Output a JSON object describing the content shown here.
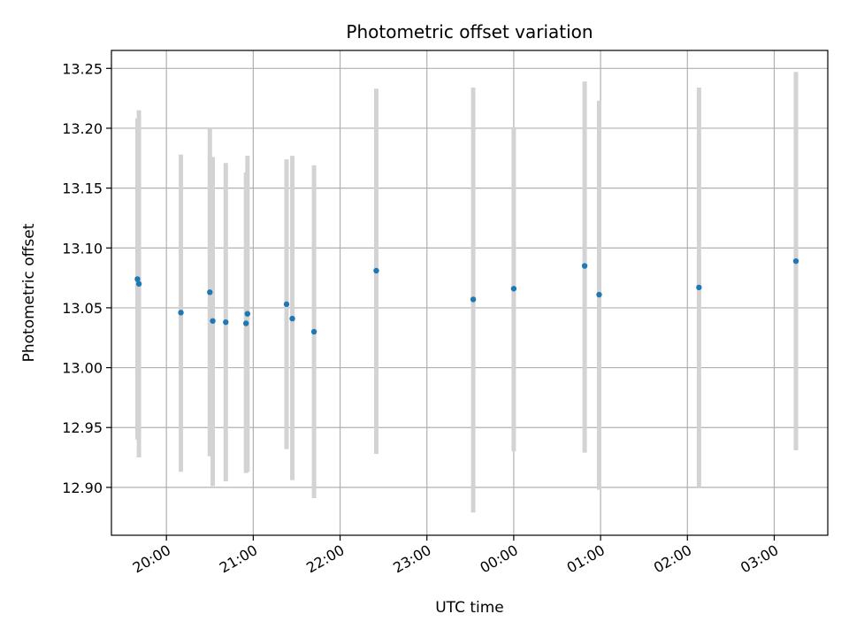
{
  "chart_data": {
    "type": "scatter",
    "title": "Photometric offset variation",
    "xlabel": "UTC time",
    "ylabel": "Photometric offset",
    "grid": true,
    "legend": "none",
    "colors": {
      "point": "#1f77b4",
      "errorbar": "#d3d3d3",
      "grid": "#b0b0b0"
    },
    "xlim": [
      "19:22",
      "03:37"
    ],
    "ylim": [
      12.86,
      13.265
    ],
    "x_ticks": [
      "20:00",
      "21:00",
      "22:00",
      "23:00",
      "00:00",
      "01:00",
      "02:00",
      "03:00"
    ],
    "y_ticks": [
      "12.90",
      "12.95",
      "13.00",
      "13.05",
      "13.10",
      "13.15",
      "13.20",
      "13.25"
    ],
    "points": [
      {
        "x": "19:40",
        "y": 13.074,
        "yerr_low": 12.94,
        "yerr_high": 13.208
      },
      {
        "x": "19:41",
        "y": 13.07,
        "yerr_low": 12.925,
        "yerr_high": 13.215
      },
      {
        "x": "20:10",
        "y": 13.046,
        "yerr_low": 12.913,
        "yerr_high": 13.178
      },
      {
        "x": "20:30",
        "y": 13.063,
        "yerr_low": 12.926,
        "yerr_high": 13.2
      },
      {
        "x": "20:32",
        "y": 13.039,
        "yerr_low": 12.901,
        "yerr_high": 13.176
      },
      {
        "x": "20:41",
        "y": 13.038,
        "yerr_low": 12.905,
        "yerr_high": 13.171
      },
      {
        "x": "20:55",
        "y": 13.037,
        "yerr_low": 12.912,
        "yerr_high": 13.163
      },
      {
        "x": "20:56",
        "y": 13.045,
        "yerr_low": 12.913,
        "yerr_high": 13.177
      },
      {
        "x": "21:23",
        "y": 13.053,
        "yerr_low": 12.932,
        "yerr_high": 13.174
      },
      {
        "x": "21:27",
        "y": 13.041,
        "yerr_low": 12.906,
        "yerr_high": 13.177
      },
      {
        "x": "21:42",
        "y": 13.03,
        "yerr_low": 12.891,
        "yerr_high": 13.169
      },
      {
        "x": "22:25",
        "y": 13.081,
        "yerr_low": 12.928,
        "yerr_high": 13.233
      },
      {
        "x": "23:32",
        "y": 13.057,
        "yerr_low": 12.879,
        "yerr_high": 13.234
      },
      {
        "x": "00:00",
        "y": 13.066,
        "yerr_low": 12.93,
        "yerr_high": 13.201
      },
      {
        "x": "00:49",
        "y": 13.085,
        "yerr_low": 12.929,
        "yerr_high": 13.239
      },
      {
        "x": "00:59",
        "y": 13.061,
        "yerr_low": 12.898,
        "yerr_high": 13.223
      },
      {
        "x": "02:08",
        "y": 13.067,
        "yerr_low": 12.9,
        "yerr_high": 13.234
      },
      {
        "x": "03:15",
        "y": 13.089,
        "yerr_low": 12.931,
        "yerr_high": 13.247
      }
    ]
  }
}
